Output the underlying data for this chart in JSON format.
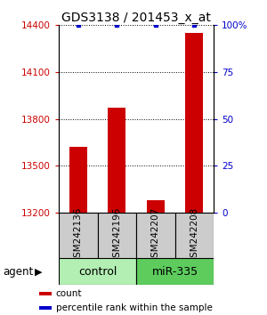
{
  "title": "GDS3138 / 201453_x_at",
  "samples": [
    "GSM242136",
    "GSM242196",
    "GSM242207",
    "GSM242208"
  ],
  "red_values": [
    13620,
    13870,
    13280,
    14350
  ],
  "blue_values": [
    100,
    100,
    100,
    100
  ],
  "ylim_left": [
    13200,
    14400
  ],
  "ylim_right": [
    0,
    100
  ],
  "yticks_left": [
    13200,
    13500,
    13800,
    14100,
    14400
  ],
  "yticks_right": [
    0,
    25,
    50,
    75,
    100
  ],
  "ytick_labels_right": [
    "0",
    "25",
    "50",
    "75",
    "100%"
  ],
  "groups": [
    {
      "label": "control",
      "indices": [
        0,
        1
      ],
      "color": "#b3efb3"
    },
    {
      "label": "miR-335",
      "indices": [
        2,
        3
      ],
      "color": "#5dcc5d"
    }
  ],
  "bar_color": "#cc0000",
  "dot_color": "#0000cc",
  "sample_box_color": "#cccccc",
  "legend_items": [
    {
      "color": "#cc0000",
      "label": "count"
    },
    {
      "color": "#0000cc",
      "label": "percentile rank within the sample"
    }
  ],
  "agent_label": "agent",
  "title_fontsize": 10,
  "tick_fontsize": 7.5,
  "sample_fontsize": 7.5,
  "group_fontsize": 9,
  "legend_fontsize": 7.5
}
